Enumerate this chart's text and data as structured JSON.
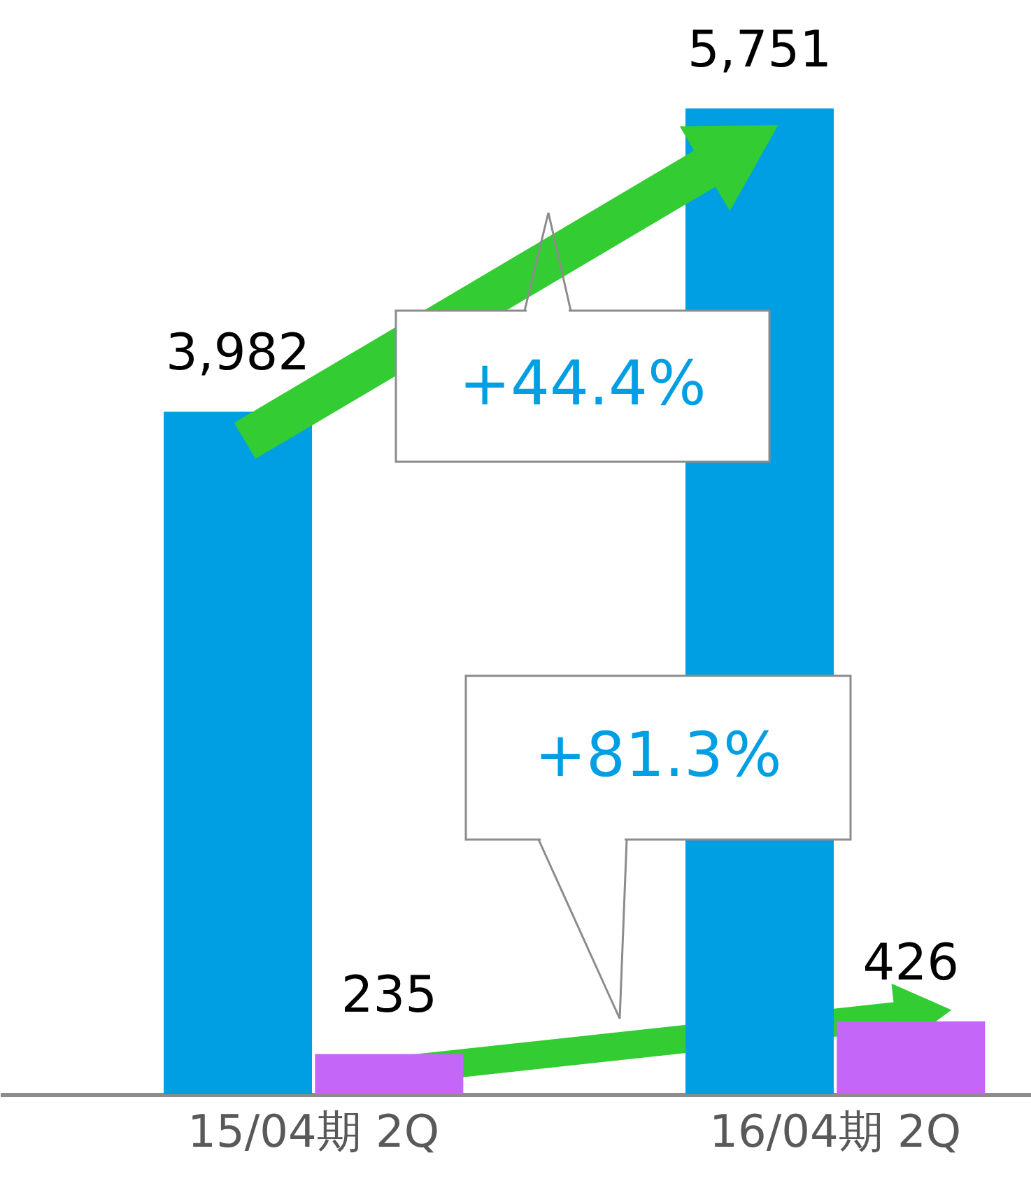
{
  "chart_data": {
    "type": "bar",
    "categories": [
      "15/04期 2Q",
      "16/04期 2Q"
    ],
    "series": [
      {
        "color": "#009fe3",
        "values": [
          3982,
          5751
        ],
        "value_labels": [
          "3,982",
          "5,751"
        ]
      },
      {
        "color": "#c466f7",
        "values": [
          235,
          426
        ],
        "value_labels": [
          "235",
          "426"
        ]
      }
    ],
    "grid": false,
    "tick_labels": "x",
    "annotations": [
      "+44.4%",
      "+81.3%"
    ]
  }
}
